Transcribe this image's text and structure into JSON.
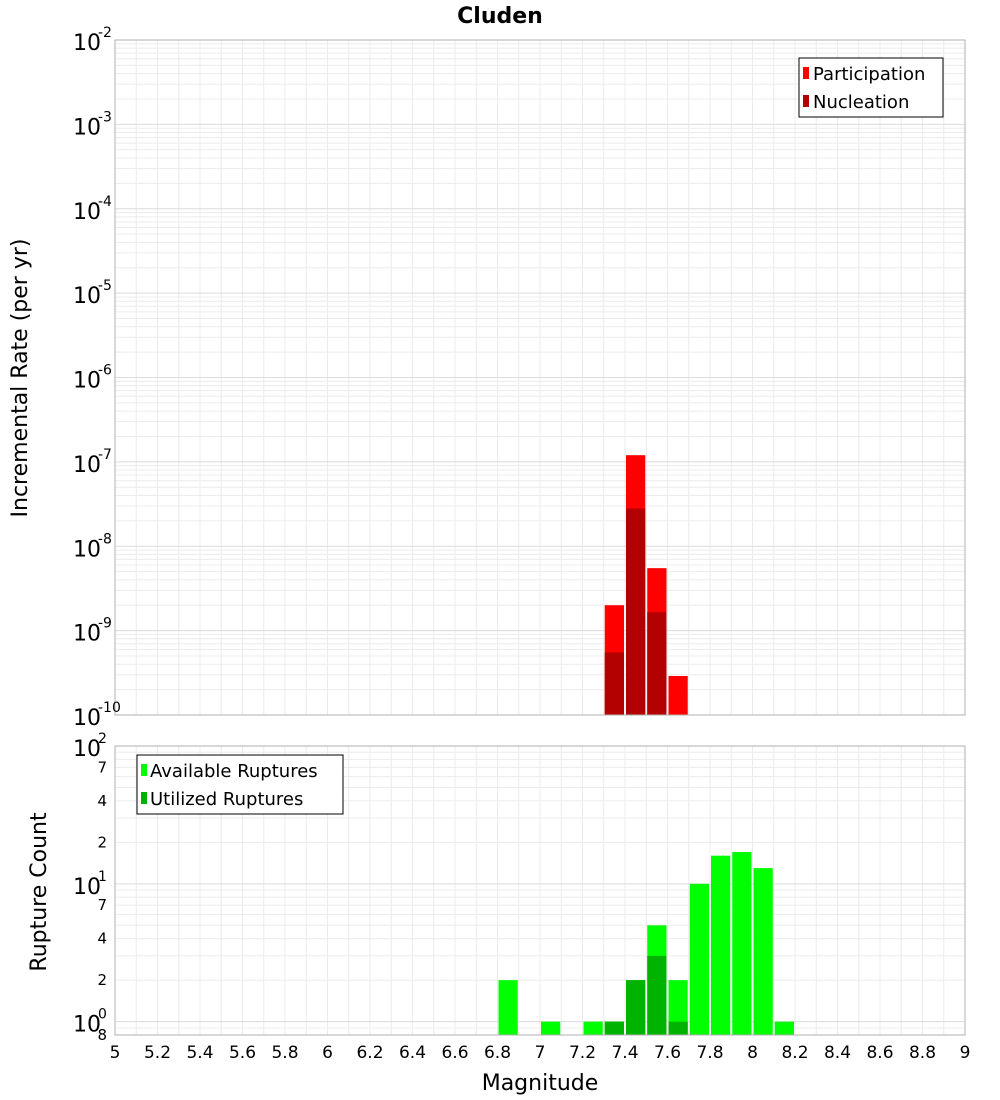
{
  "chart_data": [
    {
      "type": "bar",
      "title": "Cluden",
      "xlabel": "",
      "ylabel": "Incremental Rate (per yr)",
      "xlim": [
        5,
        9
      ],
      "ylim": [
        1e-10,
        0.01
      ],
      "yscale": "log",
      "grid": true,
      "legend_position": "top-right",
      "bin_width": 0.1,
      "y_ticks": [
        {
          "base": "10",
          "exp": "-2"
        },
        {
          "base": "10",
          "exp": "-3"
        },
        {
          "base": "10",
          "exp": "-4"
        },
        {
          "base": "10",
          "exp": "-5"
        },
        {
          "base": "10",
          "exp": "-6"
        },
        {
          "base": "10",
          "exp": "-7"
        },
        {
          "base": "10",
          "exp": "-8"
        },
        {
          "base": "10",
          "exp": "-9"
        },
        {
          "base": "10",
          "exp": "-10"
        }
      ],
      "series": [
        {
          "name": "Participation",
          "color": "#ff0000",
          "x": [
            7.35,
            7.45,
            7.55,
            7.65
          ],
          "values": [
            2e-09,
            1.2e-07,
            5.5e-09,
            2.9e-10
          ]
        },
        {
          "name": "Nucleation",
          "color": "#b30000",
          "x": [
            7.35,
            7.45,
            7.55
          ],
          "values": [
            5.5e-10,
            2.8e-08,
            1.65e-09
          ]
        }
      ]
    },
    {
      "type": "bar",
      "title": "",
      "xlabel": "Magnitude",
      "ylabel": "Rupture Count",
      "xlim": [
        5,
        9
      ],
      "ylim": [
        0.8,
        100
      ],
      "yscale": "log",
      "grid": true,
      "legend_position": "top-left",
      "bin_width": 0.1,
      "x_ticks": [
        "5",
        "5.2",
        "5.4",
        "5.6",
        "5.8",
        "6",
        "6.2",
        "6.4",
        "6.6",
        "6.8",
        "7",
        "7.2",
        "7.4",
        "7.6",
        "7.8",
        "8",
        "8.2",
        "8.4",
        "8.6",
        "8.8",
        "9"
      ],
      "y_ticks": [
        {
          "base": "10",
          "exp": "2",
          "value": 100
        },
        {
          "base": "10",
          "exp": "1",
          "value": 10
        },
        {
          "base": "10",
          "exp": "0",
          "value": 1
        }
      ],
      "y_minor_ticks": [
        {
          "label": "7",
          "value": 70
        },
        {
          "label": "4",
          "value": 40
        },
        {
          "label": "2",
          "value": 20
        },
        {
          "label": "7",
          "value": 7
        },
        {
          "label": "4",
          "value": 4
        },
        {
          "label": "2",
          "value": 2
        },
        {
          "label": "8",
          "value": 0.8
        }
      ],
      "series": [
        {
          "name": "Available Ruptures",
          "color": "#00ff00",
          "x": [
            6.85,
            7.05,
            7.25,
            7.35,
            7.45,
            7.55,
            7.65,
            7.75,
            7.85,
            7.95,
            8.05,
            8.15
          ],
          "values": [
            2,
            1,
            1,
            1,
            2,
            5,
            2,
            10,
            16,
            17,
            13,
            1
          ]
        },
        {
          "name": "Utilized Ruptures",
          "color": "#00b300",
          "x": [
            7.35,
            7.45,
            7.55,
            7.65
          ],
          "values": [
            1,
            2,
            3,
            1
          ]
        }
      ]
    }
  ]
}
